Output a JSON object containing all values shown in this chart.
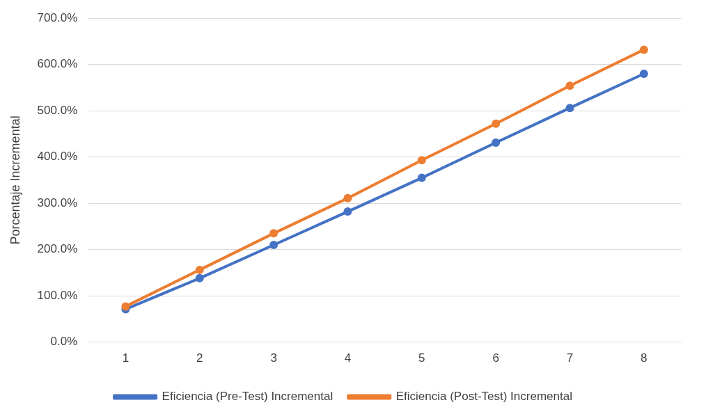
{
  "chart_data": {
    "type": "line",
    "ylabel": "Porcentaje Incremental",
    "categories": [
      "1",
      "2",
      "3",
      "4",
      "5",
      "6",
      "7",
      "8"
    ],
    "series": [
      {
        "name": "Eficiencia (Pre-Test) Incremental",
        "color": "#4472c4",
        "values": [
          71,
          138,
          210,
          282,
          355,
          431,
          506,
          580
        ]
      },
      {
        "name": "Eficiencia (Post-Test) Incremental",
        "color": "#ed7d31",
        "values": [
          77,
          156,
          235,
          311,
          393,
          472,
          554,
          632
        ]
      }
    ],
    "ylim": [
      0,
      700
    ],
    "yticks": [
      {
        "value": 0,
        "label": "0.0%"
      },
      {
        "value": 100,
        "label": "100.0%"
      },
      {
        "value": 200,
        "label": "200.0%"
      },
      {
        "value": 300,
        "label": "300.0%"
      },
      {
        "value": 400,
        "label": "400.0%"
      },
      {
        "value": 500,
        "label": "500.0%"
      },
      {
        "value": 600,
        "label": "600.0%"
      },
      {
        "value": 700,
        "label": "700.0%"
      }
    ],
    "grid": "y",
    "legend": "bottom",
    "marker": "circle",
    "line_style": "solid"
  }
}
